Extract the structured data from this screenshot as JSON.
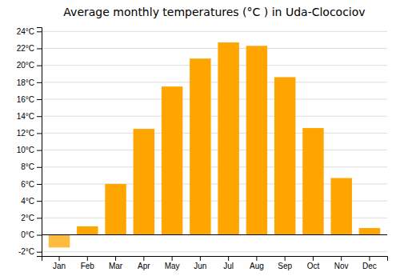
{
  "chart_data": {
    "type": "bar",
    "title": "Average monthly temperatures (°C ) in Uda-Clocociov",
    "categories": [
      "Jan",
      "Feb",
      "Mar",
      "Apr",
      "May",
      "Jun",
      "Jul",
      "Aug",
      "Sep",
      "Oct",
      "Nov",
      "Dec"
    ],
    "values": [
      -1.5,
      1.0,
      6.0,
      12.5,
      17.5,
      20.8,
      22.7,
      22.3,
      18.6,
      12.6,
      6.7,
      0.8
    ],
    "colors": [
      "#FFBA40",
      "#FFA500",
      "#FFA500",
      "#FFA500",
      "#FFA500",
      "#FFA500",
      "#FFA500",
      "#FFA500",
      "#FFA500",
      "#FFA500",
      "#FFA500",
      "#FFA500"
    ],
    "ylim": [
      -2.5,
      24.5
    ],
    "yticks": [
      {
        "value": -2,
        "label": "-2°C"
      },
      {
        "value": 0,
        "label": "0°C"
      },
      {
        "value": 2,
        "label": "2°C"
      },
      {
        "value": 4,
        "label": "4°C"
      },
      {
        "value": 6,
        "label": "6°C"
      },
      {
        "value": 8,
        "label": "8°C"
      },
      {
        "value": 10,
        "label": "10°C"
      },
      {
        "value": 12,
        "label": "12°C"
      },
      {
        "value": 14,
        "label": "14°C"
      },
      {
        "value": 16,
        "label": "16°C"
      },
      {
        "value": 18,
        "label": "18°C"
      },
      {
        "value": 20,
        "label": "20°C"
      },
      {
        "value": 22,
        "label": "22°C"
      },
      {
        "value": 24,
        "label": "24°C"
      }
    ],
    "grid": true
  }
}
